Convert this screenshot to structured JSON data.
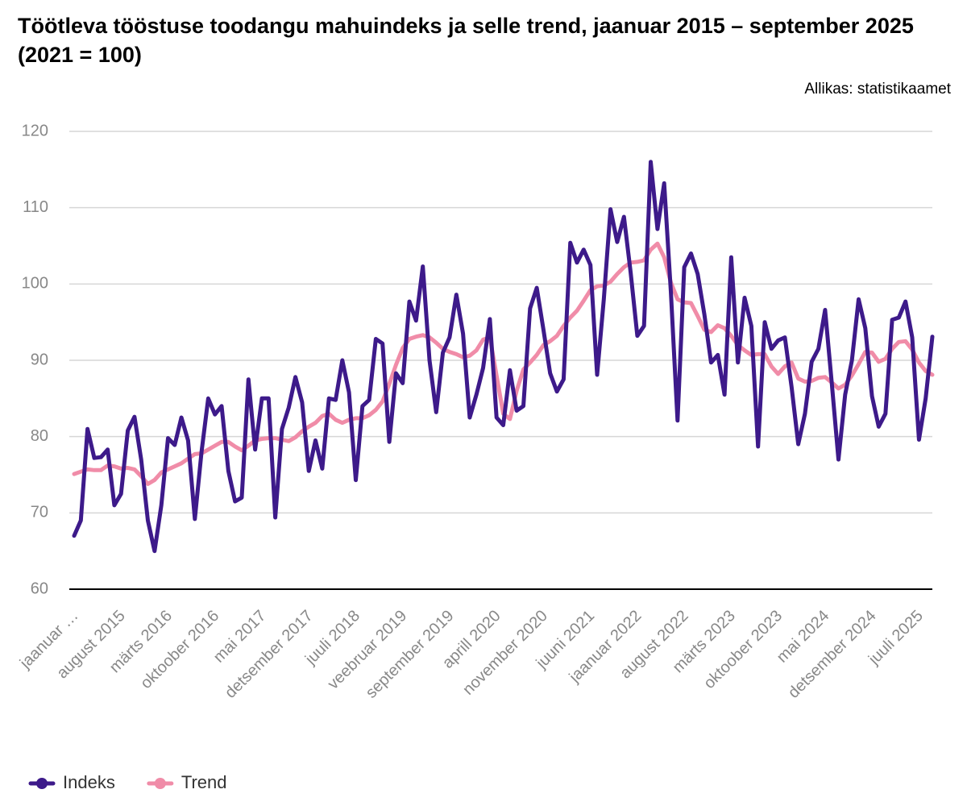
{
  "chart_data": {
    "type": "line",
    "title": "Töötleva tööstuse toodangu mahuindeks ja selle trend, jaanuar 2015 – september 2025 (2021 = 100)",
    "source": "Allikas: statistikaamet",
    "categories": [
      "jaanuar …",
      null,
      null,
      null,
      null,
      null,
      null,
      "august 2015",
      null,
      null,
      null,
      null,
      null,
      null,
      "märts 2016",
      null,
      null,
      null,
      null,
      null,
      null,
      "oktoober 2016",
      null,
      null,
      null,
      null,
      null,
      null,
      "mai 2017",
      null,
      null,
      null,
      null,
      null,
      null,
      "detsember 2017",
      null,
      null,
      null,
      null,
      null,
      null,
      "juuli 2018",
      null,
      null,
      null,
      null,
      null,
      null,
      "veebruar 2019",
      null,
      null,
      null,
      null,
      null,
      null,
      "september 2019",
      null,
      null,
      null,
      null,
      null,
      null,
      "aprill 2020",
      null,
      null,
      null,
      null,
      null,
      null,
      "november 2020",
      null,
      null,
      null,
      null,
      null,
      null,
      "juuni 2021",
      null,
      null,
      null,
      null,
      null,
      null,
      "jaanuar 2022",
      null,
      null,
      null,
      null,
      null,
      null,
      "august 2022",
      null,
      null,
      null,
      null,
      null,
      null,
      "märts 2023",
      null,
      null,
      null,
      null,
      null,
      null,
      "oktoober 2023",
      null,
      null,
      null,
      null,
      null,
      null,
      "mai 2024",
      null,
      null,
      null,
      null,
      null,
      null,
      "detsember 2024",
      null,
      null,
      null,
      null,
      null,
      null,
      "juuli 2025",
      null,
      null
    ],
    "series": [
      {
        "name": "Indeks",
        "color": "#3d1a8a",
        "values": [
          67.0,
          69,
          81,
          77.2,
          77.3,
          78.3,
          71.0,
          72.5,
          80.8,
          82.6,
          77,
          69,
          65,
          71,
          79.8,
          78.9,
          82.5,
          79.5,
          69.2,
          78,
          85,
          82.9,
          84,
          75.5,
          71.5,
          72,
          87.5,
          78.3,
          85,
          85,
          69.4,
          81,
          83.8,
          87.8,
          84.5,
          75.5,
          79.5,
          75.8,
          85,
          84.8,
          90,
          85.8,
          74.3,
          84,
          84.8,
          92.8,
          92.2,
          79.3,
          88.3,
          87,
          97.7,
          95.2,
          102.3,
          90,
          83.2,
          91,
          93,
          98.6,
          93.5,
          82.5,
          85.5,
          89,
          95.4,
          82.5,
          81.5,
          88.7,
          83.4,
          84,
          96.8,
          99.5,
          94,
          88.3,
          85.9,
          87.5,
          105.4,
          102.8,
          104.5,
          102.5,
          88.1,
          98,
          109.8,
          105.5,
          108.8,
          101.5,
          93.2,
          94.5,
          116,
          107.2,
          113.2,
          99,
          82.1,
          102.2,
          104,
          101.3,
          96,
          89.7,
          90.7,
          85.5,
          103.5,
          89.7,
          98.2,
          94.5,
          78.7,
          95,
          91.5,
          92.6,
          93,
          86.5,
          79,
          83,
          89.8,
          91.5,
          96.6,
          87,
          77,
          85.5,
          90,
          98,
          94.2,
          85.3,
          81.3,
          83,
          95.3,
          95.6,
          97.7,
          93,
          79.6,
          85,
          93.1
        ]
      },
      {
        "name": "Trend",
        "color": "#f08ca8",
        "values": [
          75.1,
          75.4,
          75.7,
          75.6,
          75.6,
          76.2,
          76.1,
          75.8,
          75.9,
          75.7,
          74.8,
          73.8,
          74.3,
          75.3,
          75.7,
          76.1,
          76.5,
          77.1,
          77.7,
          77.8,
          78.3,
          78.8,
          79.3,
          79.3,
          78.7,
          78.2,
          78.8,
          79.5,
          79.7,
          79.8,
          79.8,
          79.6,
          79.4,
          79.9,
          80.7,
          81.3,
          81.8,
          82.7,
          83,
          82.2,
          81.8,
          82.2,
          82.4,
          82.4,
          82.8,
          83.5,
          84.6,
          86.9,
          89.4,
          91.6,
          92.8,
          93.1,
          93.3,
          93,
          92.3,
          91.5,
          91.1,
          90.8,
          90.4,
          90.6,
          91.3,
          92.7,
          93,
          88,
          83,
          82.3,
          86,
          88.8,
          89.7,
          90.7,
          92,
          92.5,
          93.2,
          94.5,
          95.6,
          96.5,
          97.8,
          99.2,
          99.7,
          99.8,
          100.3,
          101.3,
          102.2,
          102.8,
          102.9,
          103.1,
          104.5,
          105.3,
          103.5,
          100.2,
          98,
          97.6,
          97.5,
          95.8,
          94,
          93.7,
          94.6,
          94.2,
          93.2,
          92,
          91.3,
          90.7,
          90.8,
          90.8,
          89.2,
          88.2,
          89.2,
          89.7,
          87.6,
          87.2,
          87.3,
          87.7,
          87.8,
          87.1,
          86.3,
          86.8,
          88,
          89.5,
          91.1,
          91,
          89.8,
          90.2,
          91.5,
          92.4,
          92.5,
          91.4,
          89.7,
          88.6,
          88.1
        ]
      }
    ],
    "ylim": [
      60,
      120
    ],
    "yticks": [
      60,
      70,
      80,
      90,
      100,
      110,
      120
    ],
    "grid": true,
    "legend": "bottom-left"
  }
}
